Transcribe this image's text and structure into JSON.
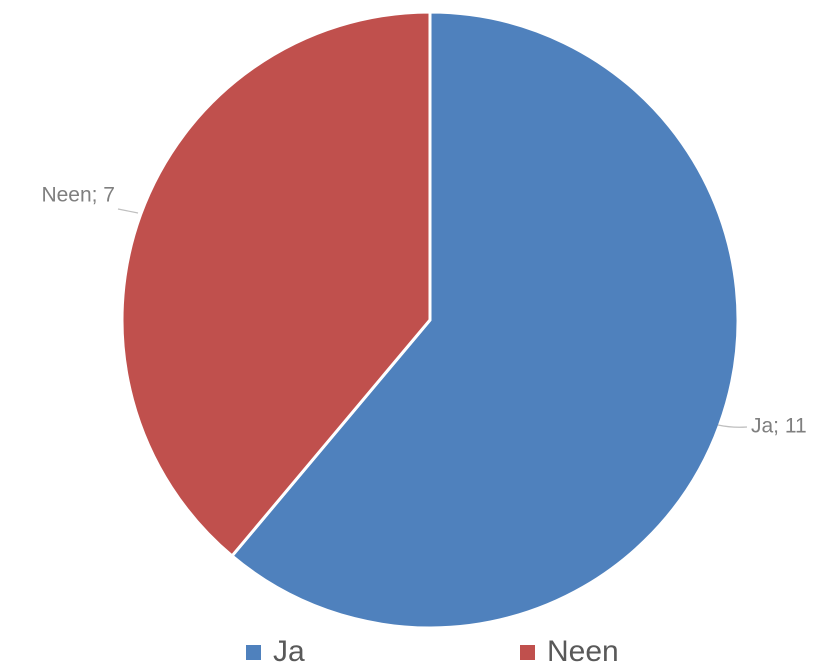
{
  "chart_data": {
    "type": "pie",
    "title": "",
    "categories": [
      "Ja",
      "Neen"
    ],
    "values": [
      11,
      7
    ],
    "colors": [
      "#4f81bd",
      "#c0504d"
    ],
    "data_labels": [
      "Ja; 11",
      "Neen; 7"
    ],
    "start_angle": "12 o'clock",
    "direction": "clockwise",
    "slice_border_color": "#ffffff",
    "legend": {
      "position": "bottom",
      "entries": [
        "Ja",
        "Neen"
      ]
    }
  }
}
